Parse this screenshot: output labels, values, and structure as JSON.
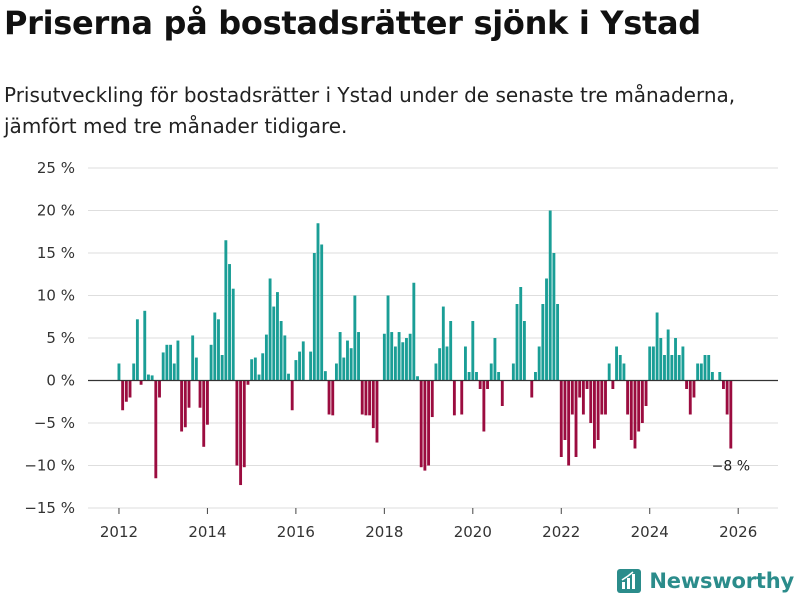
{
  "title": "Priserna på bostadsrätter sjönk i Ystad",
  "subtitle": "Prisutveckling för bostadsrätter i Ystad under de senaste tre månaderna, jämfört med tre månader tidigare.",
  "brand": {
    "name": "Newsworthy",
    "icon": "newsworthy-logo-icon"
  },
  "colors": {
    "positive": "#1a9e96",
    "negative": "#9b0c3f",
    "grid": "#dedede",
    "zero_line": "#333333",
    "brand": "#2b8c8b"
  },
  "chart_data": {
    "type": "bar",
    "title": "Priserna på bostadsrätter sjönk i Ystad",
    "xlabel": "",
    "ylabel": "",
    "x_unit": "year",
    "x_start": 2012.0,
    "x_step": 0.0833333,
    "xlim": [
      2011.3,
      2026.9
    ],
    "ylim": [
      -15,
      25
    ],
    "y_ticks": [
      25,
      20,
      15,
      10,
      5,
      0,
      -5,
      -10,
      -15
    ],
    "y_tick_labels": [
      "25 %",
      "20 %",
      "15 %",
      "10 %",
      "5 %",
      "0 %",
      "−5 %",
      "−10 %",
      "−15 %"
    ],
    "x_ticks": [
      2012,
      2014,
      2016,
      2018,
      2020,
      2022,
      2024,
      2026
    ],
    "x_tick_labels": [
      "2012",
      "2014",
      "2016",
      "2018",
      "2020",
      "2022",
      "2024",
      "2026"
    ],
    "values": [
      2,
      -3.5,
      -2.5,
      -2,
      2,
      7.2,
      -0.5,
      8.2,
      0.7,
      0.6,
      -11.5,
      -2,
      3.3,
      4.2,
      4.2,
      2,
      4.7,
      -6,
      -5.5,
      -3.2,
      5.3,
      2.7,
      -3.2,
      -7.8,
      -5.2,
      4.2,
      8,
      7.2,
      3,
      16.5,
      13.7,
      10.8,
      -10,
      -12.3,
      -10.2,
      -0.5,
      2.5,
      2.7,
      0.7,
      3.2,
      5.4,
      12,
      8.7,
      10.4,
      7,
      5.3,
      0.8,
      -3.5,
      2.4,
      3.4,
      4.6,
      0,
      3.4,
      15,
      18.5,
      16,
      1.1,
      -4,
      -4.1,
      2,
      5.7,
      2.7,
      4.7,
      3.8,
      10,
      5.7,
      -4,
      -4.1,
      -4.1,
      -5.6,
      -7.3,
      0,
      5.5,
      10,
      5.7,
      4,
      5.7,
      4.5,
      5,
      5.5,
      11.5,
      0.5,
      -10.2,
      -10.6,
      -10,
      -4.3,
      2,
      3.8,
      8.7,
      4,
      7,
      -4.1,
      0,
      -4,
      4,
      1,
      7,
      1,
      -1,
      -6,
      -1,
      2,
      5,
      1,
      -3,
      0,
      0,
      2,
      9,
      11,
      7,
      0,
      -2,
      1,
      4,
      9,
      12,
      20,
      15,
      9,
      -9,
      -7,
      -10,
      -4,
      -9,
      -2,
      -4,
      -1,
      -5,
      -8,
      -7,
      -4,
      -4,
      2,
      -1,
      4,
      3,
      2,
      -4,
      -7,
      -8,
      -6,
      -5,
      -3,
      4,
      4,
      8,
      5,
      3,
      6,
      3,
      5,
      3,
      4,
      -1,
      -4,
      -2,
      2,
      2,
      3,
      3,
      1,
      0,
      1,
      -1,
      -4,
      -8
    ],
    "annotation": {
      "label": "−8 %",
      "value": -8
    }
  }
}
